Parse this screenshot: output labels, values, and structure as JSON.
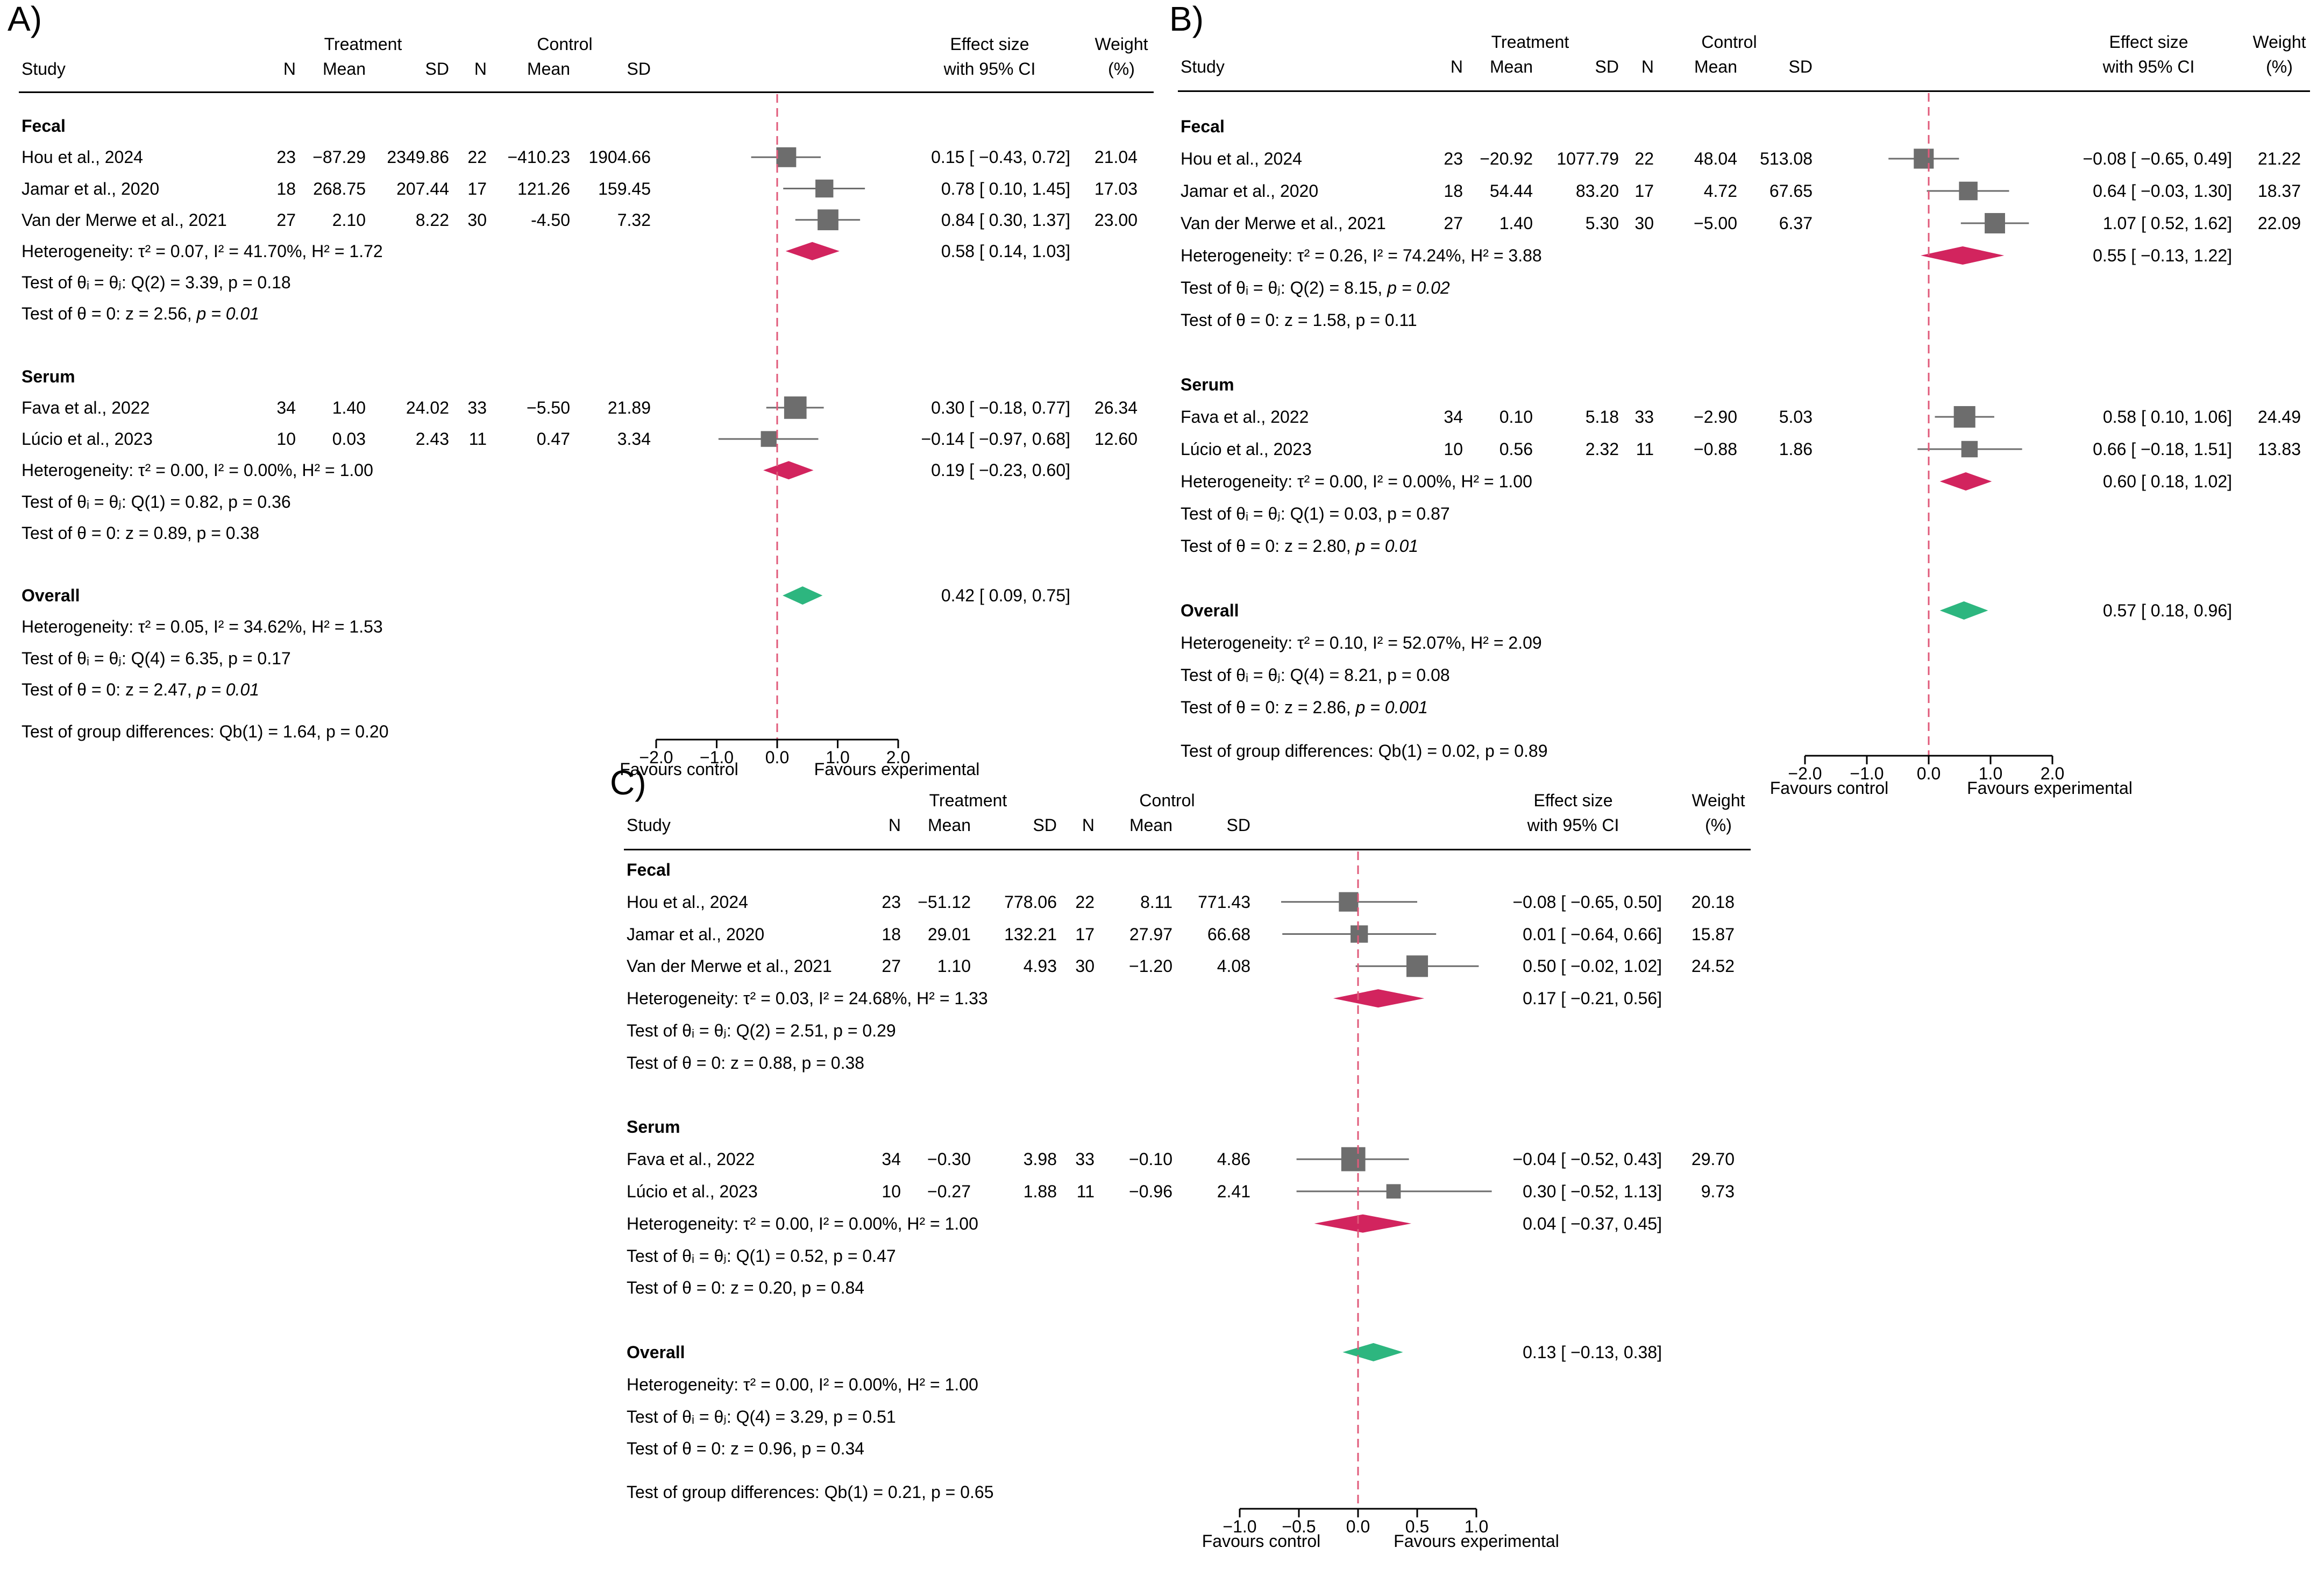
{
  "chart_data": [
    {
      "type": "forest",
      "panel_label": "A)",
      "columns": {
        "study": "Study",
        "treatment": "Treatment",
        "control": "Control",
        "n": "N",
        "mean": "Mean",
        "sd": "SD",
        "effect_1": "Effect size",
        "effect_2": "with 95% CI",
        "weight_1": "Weight",
        "weight_2": "(%)"
      },
      "xlim": [
        -2.0,
        2.0
      ],
      "ticks": [
        "−2.0",
        "−1.0",
        "0.0",
        "1.0",
        "2.0"
      ],
      "tick_values": [
        -2,
        -1,
        0,
        1,
        2
      ],
      "xlabel_left": "Favours control",
      "xlabel_right": "Favours experimental",
      "rows": [
        {
          "kind": "group",
          "text": "Fecal"
        },
        {
          "kind": "study",
          "study": "Hou et al., 2024",
          "tn": "23",
          "tmean": "−87.29",
          "tsd": "2349.86",
          "cn": "22",
          "cmean": "−410.23",
          "csd": "1904.66",
          "es": 0.15,
          "lo": -0.43,
          "hi": 0.72,
          "ci": "0.15 [ −0.43,  0.72]",
          "weight": "21.04"
        },
        {
          "kind": "study",
          "study": "Jamar et al., 2020",
          "tn": "18",
          "tmean": "268.75",
          "tsd": "207.44",
          "cn": "17",
          "cmean": "121.26",
          "csd": "159.45",
          "es": 0.78,
          "lo": 0.1,
          "hi": 1.45,
          "ci": "0.78 [  0.10,  1.45]",
          "weight": "17.03"
        },
        {
          "kind": "study",
          "study": "Van der Merwe et al., 2021",
          "tn": "27",
          "tmean": "2.10",
          "tsd": "8.22",
          "cn": "30",
          "cmean": "-4.50",
          "csd": "7.32",
          "es": 0.84,
          "lo": 0.3,
          "hi": 1.37,
          "ci": "0.84 [  0.30,  1.37]",
          "weight": "23.00"
        },
        {
          "kind": "het",
          "text": "Heterogeneity: τ² = 0.07, I² = 41.70%, H² = 1.72",
          "es": 0.58,
          "lo": 0.14,
          "hi": 1.03,
          "ci": "0.58 [  0.14,  1.03]",
          "diamond": "subgroup"
        },
        {
          "kind": "test",
          "text": "Test of θᵢ = θⱼ: Q(2) = 3.39, p = 0.18"
        },
        {
          "kind": "test",
          "text": "Test of θ = 0: z = 2.56, ",
          "ptext": "p = 0.01"
        },
        {
          "kind": "blank"
        },
        {
          "kind": "group",
          "text": "Serum"
        },
        {
          "kind": "study",
          "study": "Fava et al., 2022",
          "tn": "34",
          "tmean": "1.40",
          "tsd": "24.02",
          "cn": "33",
          "cmean": "−5.50",
          "csd": "21.89",
          "es": 0.3,
          "lo": -0.18,
          "hi": 0.77,
          "ci": "0.30 [ −0.18,  0.77]",
          "weight": "26.34"
        },
        {
          "kind": "study",
          "study": "Lúcio et al., 2023",
          "tn": "10",
          "tmean": "0.03",
          "tsd": "2.43",
          "cn": "11",
          "cmean": "0.47",
          "csd": "3.34",
          "es": -0.14,
          "lo": -0.97,
          "hi": 0.68,
          "ci": "−0.14 [ −0.97,  0.68]",
          "weight": "12.60"
        },
        {
          "kind": "het",
          "text": "Heterogeneity: τ² = 0.00, I² = 0.00%, H² = 1.00",
          "es": 0.19,
          "lo": -0.23,
          "hi": 0.6,
          "ci": "0.19 [ −0.23,  0.60]",
          "diamond": "subgroup"
        },
        {
          "kind": "test",
          "text": "Test of θᵢ = θⱼ: Q(1) = 0.82, p = 0.36"
        },
        {
          "kind": "test",
          "text": "Test of θ = 0: z = 0.89, p = 0.38"
        },
        {
          "kind": "blank"
        },
        {
          "kind": "overall",
          "text": "Overall",
          "es": 0.42,
          "lo": 0.09,
          "hi": 0.75,
          "ci": "0.42 [  0.09,  0.75]",
          "diamond": "overall"
        },
        {
          "kind": "test",
          "text": "Heterogeneity: τ² = 0.05, I² = 34.62%, H² = 1.53"
        },
        {
          "kind": "test",
          "text": "Test of θᵢ = θⱼ: Q(4) = 6.35, p = 0.17"
        },
        {
          "kind": "test",
          "text": "Test of θ = 0: z = 2.47, ",
          "ptext": "p = 0.01"
        },
        {
          "kind": "gap"
        },
        {
          "kind": "test",
          "text": "Test of group differences: Qb(1) = 1.64, p = 0.20"
        }
      ]
    },
    {
      "type": "forest",
      "panel_label": "B)",
      "columns": {
        "study": "Study",
        "treatment": "Treatment",
        "control": "Control",
        "n": "N",
        "mean": "Mean",
        "sd": "SD",
        "effect_1": "Effect size",
        "effect_2": "with 95% CI",
        "weight_1": "Weight",
        "weight_2": "(%)"
      },
      "xlim": [
        -2.0,
        2.0
      ],
      "ticks": [
        "−2.0",
        "−1.0",
        "0.0",
        "1.0",
        "2.0"
      ],
      "tick_values": [
        -2,
        -1,
        0,
        1,
        2
      ],
      "xlabel_left": "Favours control",
      "xlabel_right": "Favours experimental",
      "rows": [
        {
          "kind": "group",
          "text": "Fecal"
        },
        {
          "kind": "study",
          "study": "Hou et al., 2024",
          "tn": "23",
          "tmean": "−20.92",
          "tsd": "1077.79",
          "cn": "22",
          "cmean": "48.04",
          "csd": "513.08",
          "es": -0.08,
          "lo": -0.65,
          "hi": 0.49,
          "ci": "−0.08 [ −0.65,  0.49]",
          "weight": "21.22"
        },
        {
          "kind": "study",
          "study": "Jamar et al., 2020",
          "tn": "18",
          "tmean": "54.44",
          "tsd": "83.20",
          "cn": "17",
          "cmean": "4.72",
          "csd": "67.65",
          "es": 0.64,
          "lo": -0.03,
          "hi": 1.3,
          "ci": "0.64 [ −0.03,  1.30]",
          "weight": "18.37"
        },
        {
          "kind": "study",
          "study": "Van der Merwe et al., 2021",
          "tn": "27",
          "tmean": "1.40",
          "tsd": "5.30",
          "cn": "30",
          "cmean": "−5.00",
          "csd": "6.37",
          "es": 1.07,
          "lo": 0.52,
          "hi": 1.62,
          "ci": "1.07 [  0.52,  1.62]",
          "weight": "22.09"
        },
        {
          "kind": "het",
          "text": "Heterogeneity: τ² = 0.26, I² = 74.24%, H² = 3.88",
          "es": 0.55,
          "lo": -0.13,
          "hi": 1.22,
          "ci": "0.55 [ −0.13,  1.22]",
          "diamond": "subgroup"
        },
        {
          "kind": "test",
          "text": "Test of θᵢ = θⱼ: Q(2) = 8.15, ",
          "ptext": "p = 0.02"
        },
        {
          "kind": "test",
          "text": "Test of θ = 0: z = 1.58, p = 0.11"
        },
        {
          "kind": "blank"
        },
        {
          "kind": "group",
          "text": "Serum"
        },
        {
          "kind": "study",
          "study": "Fava et al., 2022",
          "tn": "34",
          "tmean": "0.10",
          "tsd": "5.18",
          "cn": "33",
          "cmean": "−2.90",
          "csd": "5.03",
          "es": 0.58,
          "lo": 0.1,
          "hi": 1.06,
          "ci": "0.58 [  0.10,  1.06]",
          "weight": "24.49"
        },
        {
          "kind": "study",
          "study": "Lúcio et al., 2023",
          "tn": "10",
          "tmean": "0.56",
          "tsd": "2.32",
          "cn": "11",
          "cmean": "−0.88",
          "csd": "1.86",
          "es": 0.66,
          "lo": -0.18,
          "hi": 1.51,
          "ci": "0.66 [ −0.18,  1.51]",
          "weight": "13.83"
        },
        {
          "kind": "het",
          "text": "Heterogeneity: τ² = 0.00, I² = 0.00%, H² = 1.00",
          "es": 0.6,
          "lo": 0.18,
          "hi": 1.02,
          "ci": "0.60 [  0.18,  1.02]",
          "diamond": "subgroup"
        },
        {
          "kind": "test",
          "text": "Test of θᵢ = θⱼ: Q(1) = 0.03, p = 0.87"
        },
        {
          "kind": "test",
          "text": "Test of θ = 0: z = 2.80, ",
          "ptext": "p = 0.01"
        },
        {
          "kind": "blank"
        },
        {
          "kind": "overall",
          "text": "Overall",
          "es": 0.57,
          "lo": 0.18,
          "hi": 0.96,
          "ci": "0.57 [  0.18,  0.96]",
          "diamond": "overall"
        },
        {
          "kind": "test",
          "text": "Heterogeneity: τ² = 0.10, I² = 52.07%, H² = 2.09"
        },
        {
          "kind": "test",
          "text": "Test of θᵢ = θⱼ: Q(4) = 8.21, p = 0.08"
        },
        {
          "kind": "test",
          "text": "Test of θ = 0: z = 2.86, ",
          "ptext": "p = 0.001"
        },
        {
          "kind": "gap"
        },
        {
          "kind": "test",
          "text": "Test of group differences: Qb(1) = 0.02, p = 0.89"
        }
      ]
    },
    {
      "type": "forest",
      "panel_label": "C)",
      "columns": {
        "study": "Study",
        "treatment": "Treatment",
        "control": "Control",
        "n": "N",
        "mean": "Mean",
        "sd": "SD",
        "effect_1": "Effect size",
        "effect_2": "with 95% CI",
        "weight_1": "Weight",
        "weight_2": "(%)"
      },
      "xlim": [
        -1.0,
        1.0
      ],
      "ticks": [
        "−1.0",
        "−0.5",
        "0.0",
        "0.5",
        "1.0"
      ],
      "tick_values": [
        -1,
        -0.5,
        0,
        0.5,
        1
      ],
      "xlabel_left": "Favours control",
      "xlabel_right": "Favours experimental",
      "rows": [
        {
          "kind": "group",
          "text": "Fecal"
        },
        {
          "kind": "study",
          "study": "Hou et al., 2024",
          "tn": "23",
          "tmean": "−51.12",
          "tsd": "778.06",
          "cn": "22",
          "cmean": "8.11",
          "csd": "771.43",
          "es": -0.08,
          "lo": -0.65,
          "hi": 0.5,
          "ci": "−0.08 [ −0.65,  0.50]",
          "weight": "20.18"
        },
        {
          "kind": "study",
          "study": "Jamar et al., 2020",
          "tn": "18",
          "tmean": "29.01",
          "tsd": "132.21",
          "cn": "17",
          "cmean": "27.97",
          "csd": "66.68",
          "es": 0.01,
          "lo": -0.64,
          "hi": 0.66,
          "ci": "0.01 [ −0.64,  0.66]",
          "weight": "15.87"
        },
        {
          "kind": "study",
          "study": "Van der Merwe et al., 2021",
          "tn": "27",
          "tmean": "1.10",
          "tsd": "4.93",
          "cn": "30",
          "cmean": "−1.20",
          "csd": "4.08",
          "es": 0.5,
          "lo": -0.02,
          "hi": 1.02,
          "ci": "0.50 [ −0.02,  1.02]",
          "weight": "24.52"
        },
        {
          "kind": "het",
          "text": "Heterogeneity: τ² = 0.03, I² = 24.68%, H² = 1.33",
          "es": 0.17,
          "lo": -0.21,
          "hi": 0.56,
          "ci": "0.17 [ −0.21,  0.56]",
          "diamond": "subgroup"
        },
        {
          "kind": "test",
          "text": "Test of θᵢ = θⱼ: Q(2) = 2.51, p = 0.29"
        },
        {
          "kind": "test",
          "text": "Test of θ = 0: z = 0.88, p = 0.38"
        },
        {
          "kind": "blank"
        },
        {
          "kind": "group",
          "text": "Serum"
        },
        {
          "kind": "study",
          "study": "Fava et al., 2022",
          "tn": "34",
          "tmean": "−0.30",
          "tsd": "3.98",
          "cn": "33",
          "cmean": "−0.10",
          "csd": "4.86",
          "es": -0.04,
          "lo": -0.52,
          "hi": 0.43,
          "ci": "−0.04 [ −0.52,  0.43]",
          "weight": "29.70"
        },
        {
          "kind": "study",
          "study": "Lúcio et al., 2023",
          "tn": "10",
          "tmean": "−0.27",
          "tsd": "1.88",
          "cn": "11",
          "cmean": "−0.96",
          "csd": "2.41",
          "es": 0.3,
          "lo": -0.52,
          "hi": 1.13,
          "ci": "0.30 [ −0.52,  1.13]",
          "weight": "9.73"
        },
        {
          "kind": "het",
          "text": "Heterogeneity: τ² = 0.00, I² = 0.00%, H² = 1.00",
          "es": 0.04,
          "lo": -0.37,
          "hi": 0.45,
          "ci": "0.04 [ −0.37,  0.45]",
          "diamond": "subgroup"
        },
        {
          "kind": "test",
          "text": "Test of θᵢ = θⱼ: Q(1) = 0.52, p = 0.47"
        },
        {
          "kind": "test",
          "text": "Test of θ = 0: z = 0.20, p = 0.84"
        },
        {
          "kind": "blank"
        },
        {
          "kind": "overall",
          "text": "Overall",
          "es": 0.13,
          "lo": -0.13,
          "hi": 0.38,
          "ci": "0.13 [ −0.13,  0.38]",
          "diamond": "overall"
        },
        {
          "kind": "test",
          "text": "Heterogeneity: τ² = 0.00, I² = 0.00%, H² = 1.00"
        },
        {
          "kind": "test",
          "text": "Test of θᵢ = θⱼ: Q(4) = 3.29, p = 0.51"
        },
        {
          "kind": "test",
          "text": "Test of θ = 0: z = 0.96, p = 0.34"
        },
        {
          "kind": "gap"
        },
        {
          "kind": "test",
          "text": "Test of group differences: Qb(1) = 0.21, p = 0.65"
        }
      ]
    }
  ],
  "colors": {
    "marker": "#6d6d6d",
    "whisker": "#6d6d6d",
    "subgroup_diamond": "#d2245e",
    "overall_diamond": "#2db67f",
    "null_line": "#e05a7a",
    "axis": "#000000"
  }
}
